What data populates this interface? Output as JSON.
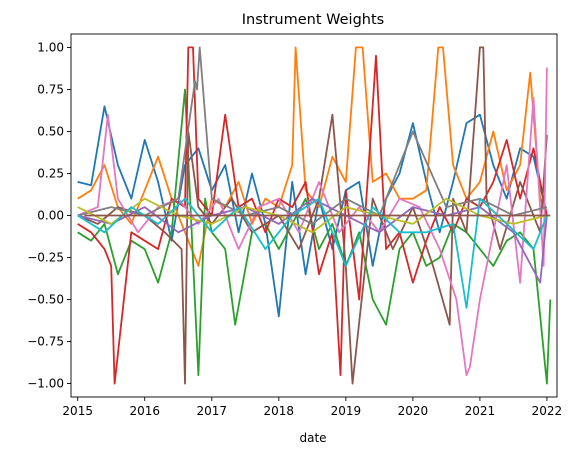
{
  "chart_data": {
    "type": "line",
    "title": "Instrument Weights",
    "xlabel": "date",
    "ylabel": "",
    "xlim": [
      2014.9,
      2022.15
    ],
    "ylim": [
      -1.08,
      1.08
    ],
    "x_ticks": [
      2015,
      2016,
      2017,
      2018,
      2019,
      2020,
      2021,
      2022
    ],
    "x_tick_labels": [
      "2015",
      "2016",
      "2017",
      "2018",
      "2019",
      "2020",
      "2021",
      "2022"
    ],
    "y_ticks": [
      -1.0,
      -0.75,
      -0.5,
      -0.25,
      0.0,
      0.25,
      0.5,
      0.75,
      1.0
    ],
    "y_tick_labels": [
      "−1.00",
      "−0.75",
      "−0.50",
      "−0.25",
      "0.00",
      "0.25",
      "0.50",
      "0.75",
      "1.00"
    ],
    "grid": false,
    "legend": "none",
    "series": [
      {
        "color": "#1f77b4",
        "x": [
          2015.0,
          2015.2,
          2015.4,
          2015.6,
          2015.8,
          2016.0,
          2016.2,
          2016.4,
          2016.6,
          2016.8,
          2017.0,
          2017.2,
          2017.4,
          2017.6,
          2017.8,
          2018.0,
          2018.2,
          2018.4,
          2018.6,
          2018.8,
          2019.0,
          2019.2,
          2019.4,
          2019.6,
          2019.8,
          2020.0,
          2020.2,
          2020.4,
          2020.6,
          2020.8,
          2021.0,
          2021.2,
          2021.4,
          2021.6,
          2021.8,
          2022.0
        ],
        "y": [
          0.2,
          0.18,
          0.65,
          0.3,
          0.1,
          0.45,
          0.2,
          -0.15,
          0.3,
          0.4,
          0.15,
          0.3,
          -0.1,
          0.25,
          -0.05,
          -0.6,
          0.2,
          -0.35,
          0.1,
          -0.2,
          0.15,
          0.2,
          -0.3,
          0.1,
          0.25,
          0.55,
          0.2,
          -0.1,
          0.2,
          0.55,
          0.6,
          0.3,
          0.1,
          0.4,
          0.35,
          0.0
        ]
      },
      {
        "color": "#ff7f0e",
        "x": [
          2015.0,
          2015.2,
          2015.4,
          2015.6,
          2015.8,
          2016.0,
          2016.2,
          2016.4,
          2016.6,
          2016.8,
          2017.0,
          2017.2,
          2017.4,
          2017.6,
          2017.8,
          2018.0,
          2018.2,
          2018.25,
          2018.4,
          2018.6,
          2018.8,
          2019.0,
          2019.15,
          2019.25,
          2019.4,
          2019.6,
          2019.8,
          2020.0,
          2020.2,
          2020.38,
          2020.45,
          2020.6,
          2020.8,
          2021.0,
          2021.2,
          2021.4,
          2021.6,
          2021.75,
          2021.9,
          2022.0
        ],
        "y": [
          0.1,
          0.15,
          0.3,
          0.05,
          -0.05,
          0.15,
          0.35,
          0.1,
          -0.1,
          -0.3,
          0.1,
          0.05,
          0.2,
          -0.05,
          0.1,
          0.05,
          0.3,
          1.0,
          0.15,
          0.05,
          0.35,
          0.2,
          1.0,
          1.0,
          0.2,
          0.25,
          0.1,
          0.1,
          0.15,
          1.0,
          1.0,
          0.3,
          0.1,
          0.2,
          0.5,
          0.15,
          0.3,
          0.85,
          0.1,
          0.0
        ]
      },
      {
        "color": "#2ca02c",
        "x": [
          2015.0,
          2015.2,
          2015.4,
          2015.6,
          2015.8,
          2016.0,
          2016.2,
          2016.4,
          2016.6,
          2016.8,
          2016.9,
          2017.0,
          2017.2,
          2017.35,
          2017.6,
          2017.8,
          2018.0,
          2018.2,
          2018.4,
          2018.6,
          2018.8,
          2019.0,
          2019.2,
          2019.4,
          2019.6,
          2019.8,
          2020.0,
          2020.2,
          2020.4,
          2020.6,
          2020.8,
          2021.0,
          2021.2,
          2021.4,
          2021.6,
          2021.8,
          2022.0,
          2022.05
        ],
        "y": [
          -0.1,
          -0.15,
          -0.05,
          -0.35,
          -0.15,
          -0.2,
          -0.4,
          -0.1,
          0.75,
          -0.95,
          0.1,
          -0.1,
          -0.2,
          -0.65,
          -0.1,
          -0.05,
          -0.2,
          -0.05,
          0.1,
          -0.2,
          -0.05,
          -0.3,
          -0.1,
          -0.5,
          -0.65,
          -0.2,
          -0.1,
          -0.3,
          -0.25,
          -0.05,
          -0.1,
          -0.2,
          -0.3,
          -0.15,
          -0.1,
          -0.2,
          -1.0,
          -0.5
        ]
      },
      {
        "color": "#d62728",
        "x": [
          2015.0,
          2015.2,
          2015.4,
          2015.5,
          2015.55,
          2015.8,
          2016.0,
          2016.2,
          2016.4,
          2016.6,
          2016.65,
          2016.72,
          2016.8,
          2017.0,
          2017.2,
          2017.4,
          2017.6,
          2017.8,
          2018.0,
          2018.2,
          2018.4,
          2018.6,
          2018.8,
          2018.92,
          2019.0,
          2019.2,
          2019.35,
          2019.45,
          2019.6,
          2019.8,
          2020.0,
          2020.2,
          2020.4,
          2020.6,
          2020.8,
          2021.0,
          2021.2,
          2021.4,
          2021.6,
          2021.8,
          2022.0
        ],
        "y": [
          -0.05,
          -0.1,
          -0.2,
          -0.3,
          -1.0,
          -0.1,
          -0.15,
          -0.2,
          0.1,
          0.05,
          1.0,
          1.0,
          0.1,
          0.0,
          0.6,
          0.05,
          0.1,
          -0.1,
          0.1,
          0.05,
          0.2,
          -0.35,
          -0.1,
          -0.95,
          0.15,
          -0.5,
          0.35,
          0.95,
          -0.2,
          -0.1,
          -0.4,
          -0.15,
          0.05,
          -0.1,
          0.1,
          0.05,
          0.2,
          0.45,
          0.1,
          0.4,
          0.0
        ]
      },
      {
        "color": "#8c564b",
        "x": [
          2015.0,
          2015.3,
          2015.6,
          2016.0,
          2016.3,
          2016.55,
          2016.6,
          2016.65,
          2016.8,
          2017.0,
          2017.3,
          2017.6,
          2018.0,
          2018.3,
          2018.6,
          2018.8,
          2019.0,
          2019.1,
          2019.4,
          2019.7,
          2020.0,
          2020.3,
          2020.55,
          2020.6,
          2020.8,
          2021.0,
          2021.05,
          2021.1,
          2021.3,
          2021.6,
          2021.9,
          2022.0
        ],
        "y": [
          0.0,
          -0.05,
          0.05,
          0.0,
          -0.1,
          -0.2,
          -1.0,
          0.5,
          0.05,
          -0.05,
          0.1,
          -0.1,
          0.0,
          -0.2,
          0.1,
          0.6,
          -0.3,
          -1.0,
          0.1,
          -0.2,
          0.05,
          -0.3,
          -0.65,
          0.1,
          -0.1,
          1.0,
          1.0,
          0.1,
          -0.2,
          0.2,
          -0.1,
          0.48
        ]
      },
      {
        "color": "#e377c2",
        "x": [
          2015.0,
          2015.3,
          2015.45,
          2015.6,
          2015.9,
          2016.2,
          2016.5,
          2016.8,
          2017.1,
          2017.4,
          2017.7,
          2018.0,
          2018.3,
          2018.6,
          2018.9,
          2019.2,
          2019.5,
          2019.8,
          2020.1,
          2020.4,
          2020.65,
          2020.8,
          2020.85,
          2021.0,
          2021.2,
          2021.4,
          2021.6,
          2021.8,
          2021.95,
          2022.0
        ],
        "y": [
          0.0,
          0.05,
          0.6,
          0.1,
          -0.1,
          0.05,
          0.1,
          -0.05,
          0.1,
          -0.2,
          0.05,
          0.1,
          -0.1,
          0.2,
          -0.1,
          0.05,
          -0.1,
          0.1,
          0.05,
          -0.2,
          -0.5,
          -0.95,
          -0.9,
          -0.5,
          -0.1,
          0.3,
          -0.4,
          0.7,
          -0.3,
          0.88
        ]
      },
      {
        "color": "#7f7f7f",
        "x": [
          2015.0,
          2015.5,
          2016.0,
          2016.5,
          2016.75,
          2016.78,
          2016.82,
          2017.0,
          2017.5,
          2018.0,
          2018.5,
          2019.0,
          2019.5,
          2020.0,
          2020.5,
          2021.0,
          2021.5,
          2022.0
        ],
        "y": [
          0.0,
          0.05,
          0.0,
          0.1,
          0.8,
          0.75,
          1.0,
          0.1,
          0.0,
          0.05,
          -0.05,
          0.1,
          0.0,
          0.5,
          0.05,
          0.1,
          0.0,
          0.05
        ]
      },
      {
        "color": "#9467bd",
        "x": [
          2015.0,
          2015.5,
          2016.0,
          2016.5,
          2017.0,
          2017.5,
          2018.0,
          2018.5,
          2019.0,
          2019.5,
          2020.0,
          2020.5,
          2021.0,
          2021.5,
          2021.9,
          2022.0
        ],
        "y": [
          0.0,
          -0.05,
          0.05,
          -0.1,
          0.0,
          0.05,
          -0.05,
          0.1,
          0.0,
          -0.1,
          0.05,
          0.0,
          0.05,
          -0.1,
          -0.4,
          0.0
        ]
      },
      {
        "color": "#bcbd22",
        "x": [
          2015.0,
          2015.5,
          2016.0,
          2016.5,
          2017.0,
          2017.5,
          2018.0,
          2018.5,
          2019.0,
          2019.5,
          2020.0,
          2020.5,
          2021.0,
          2021.5,
          2022.0
        ],
        "y": [
          0.05,
          -0.05,
          0.1,
          0.0,
          -0.05,
          0.05,
          0.0,
          -0.1,
          0.05,
          0.0,
          -0.05,
          0.1,
          0.0,
          -0.05,
          0.0
        ]
      },
      {
        "color": "#17becf",
        "x": [
          2015.0,
          2015.4,
          2015.8,
          2016.2,
          2016.6,
          2017.0,
          2017.4,
          2017.8,
          2018.2,
          2018.6,
          2019.0,
          2019.4,
          2019.8,
          2020.2,
          2020.6,
          2020.8,
          2021.0,
          2021.4,
          2021.8,
          2022.0
        ],
        "y": [
          0.0,
          -0.1,
          0.05,
          -0.05,
          0.1,
          -0.1,
          0.05,
          -0.2,
          0.0,
          0.1,
          -0.3,
          0.05,
          -0.1,
          -0.1,
          -0.05,
          -0.55,
          0.1,
          -0.05,
          -0.2,
          0.0
        ]
      },
      {
        "color": "#8c564b",
        "x": [
          2015.1,
          2022.05
        ],
        "y": [
          0.0,
          0.0
        ]
      }
    ]
  }
}
